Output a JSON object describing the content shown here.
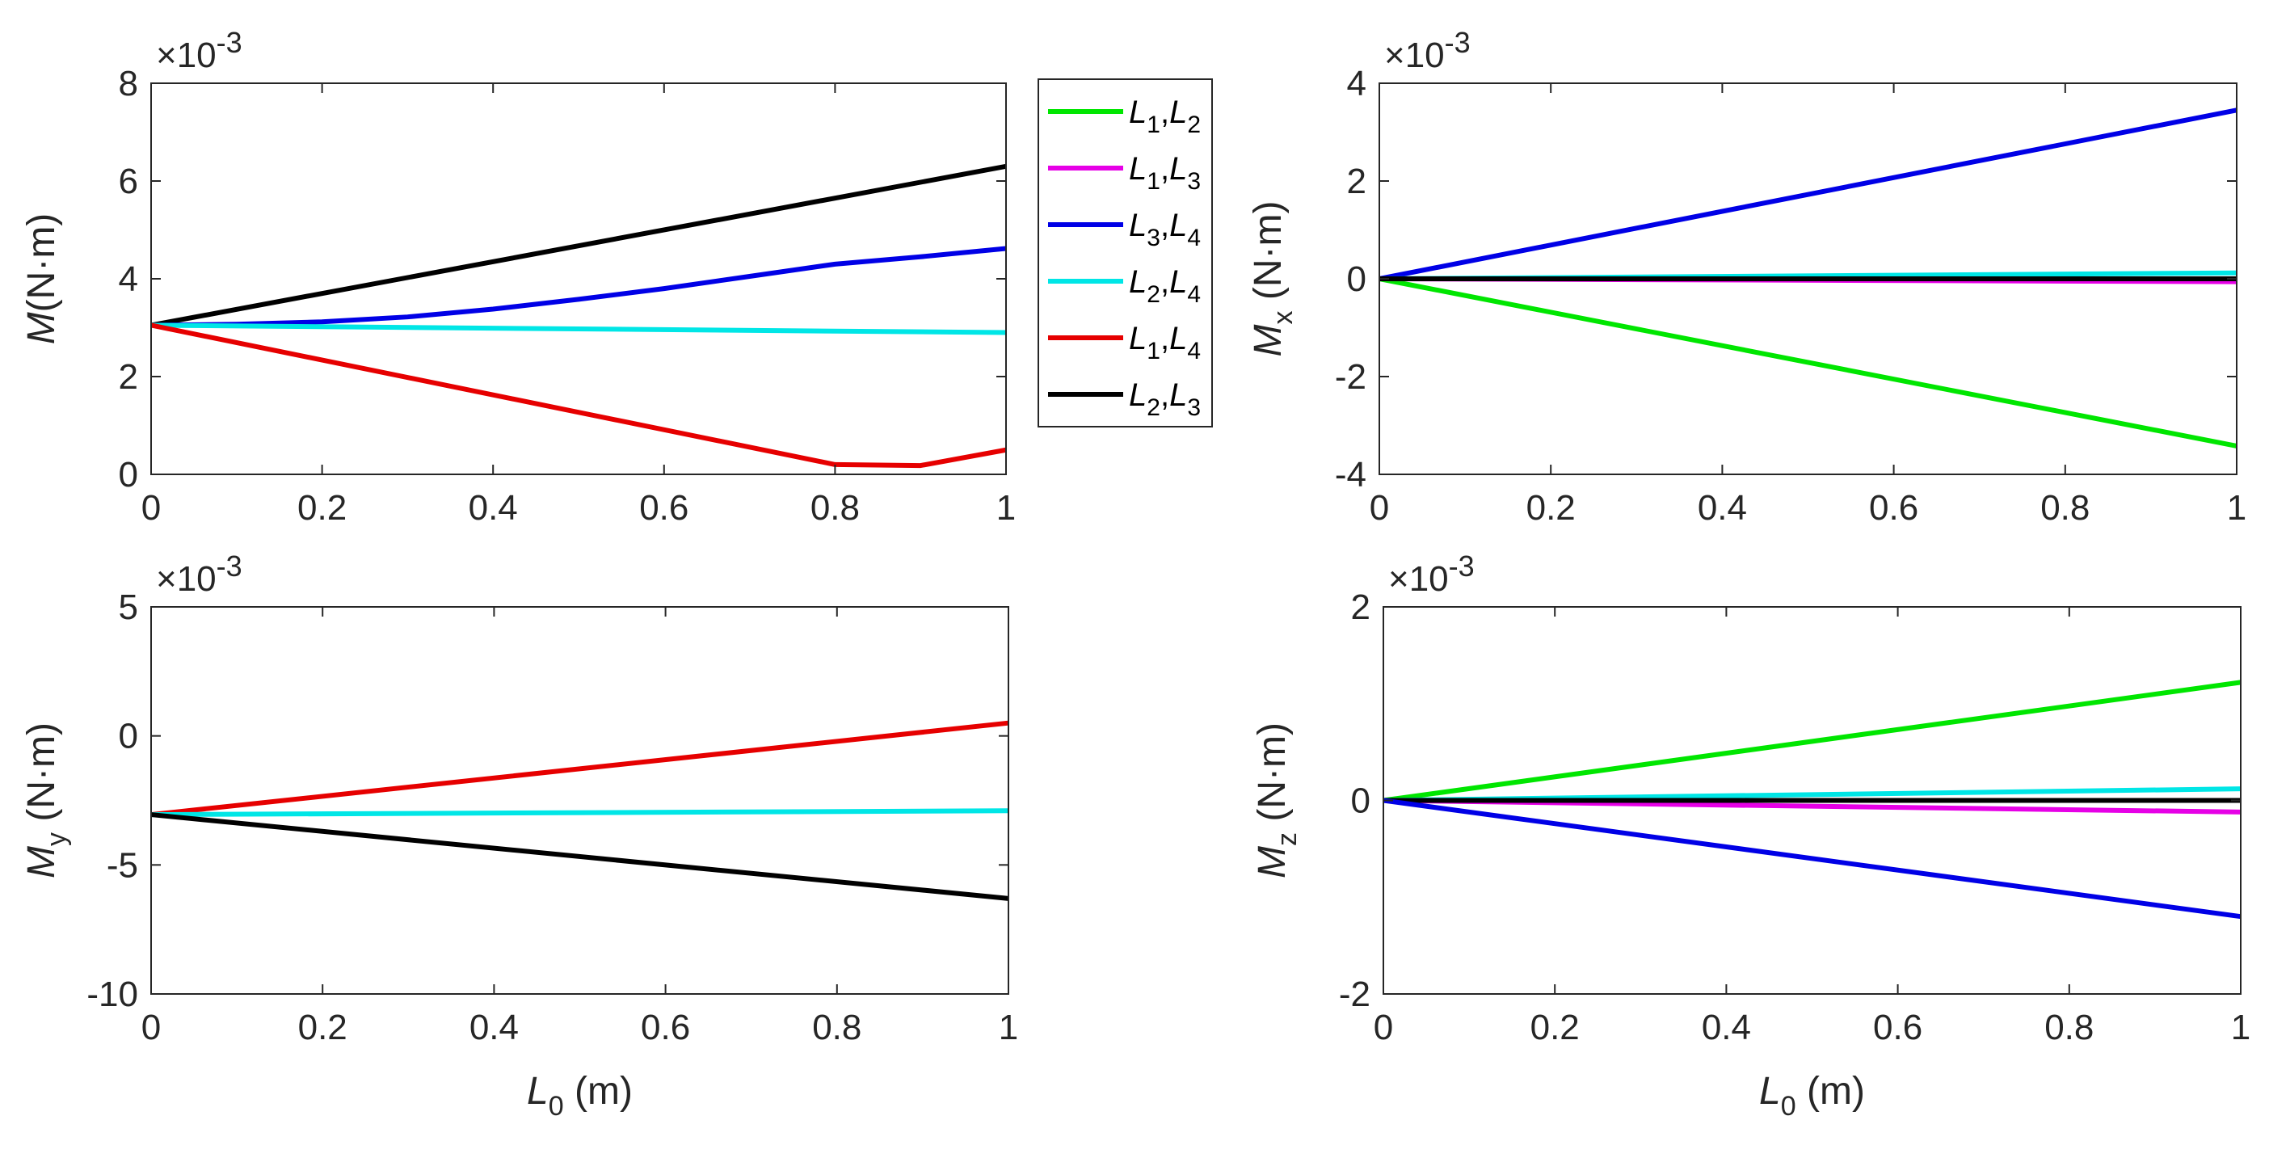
{
  "colors": {
    "L1L2": "#00e600",
    "L1L3": "#e600e6",
    "L3L4": "#0000e6",
    "L2L4": "#00e6e6",
    "L1L4": "#e60000",
    "L2L3": "#000000"
  },
  "legend": {
    "items": [
      {
        "key": "L1L2",
        "a": "L",
        "as": "1",
        "b": "L",
        "bs": "2"
      },
      {
        "key": "L1L3",
        "a": "L",
        "as": "1",
        "b": "L",
        "bs": "3"
      },
      {
        "key": "L3L4",
        "a": "L",
        "as": "3",
        "b": "L",
        "bs": "4"
      },
      {
        "key": "L2L4",
        "a": "L",
        "as": "2",
        "b": "L",
        "bs": "4"
      },
      {
        "key": "L1L4",
        "a": "L",
        "as": "1",
        "b": "L",
        "bs": "4"
      },
      {
        "key": "L2L3",
        "a": "L",
        "as": "2",
        "b": "L",
        "bs": "3"
      }
    ]
  },
  "chart_data": [
    {
      "id": "M",
      "type": "line",
      "ylabel": "M(N·m)",
      "ylabel_main": "M",
      "ylabel_sub": "",
      "ylabel_unit": "(N·m)",
      "xlabel": "",
      "exponent": "×10",
      "exponent_power": "-3",
      "xlim": [
        0,
        1
      ],
      "ylim": [
        0,
        8
      ],
      "xticks": [
        "0",
        "0.2",
        "0.4",
        "0.6",
        "0.8",
        "1"
      ],
      "yticks": [
        "0",
        "2",
        "4",
        "6",
        "8"
      ],
      "series": [
        {
          "key": "L2L3",
          "x": [
            0,
            1
          ],
          "y": [
            3.05,
            6.3
          ]
        },
        {
          "key": "L3L4",
          "x": [
            0,
            0.1,
            0.2,
            0.3,
            0.4,
            0.5,
            0.6,
            0.7,
            0.8,
            0.9,
            1.0
          ],
          "y": [
            3.05,
            3.07,
            3.12,
            3.22,
            3.38,
            3.58,
            3.8,
            4.05,
            4.3,
            4.45,
            4.62
          ]
        },
        {
          "key": "L2L4",
          "x": [
            0,
            1
          ],
          "y": [
            3.05,
            2.9
          ]
        },
        {
          "key": "L1L4",
          "x": [
            0,
            0.8,
            0.9,
            1.0
          ],
          "y": [
            3.05,
            0.2,
            0.18,
            0.5
          ]
        }
      ]
    },
    {
      "id": "Mx",
      "type": "line",
      "ylabel": "Mx (N·m)",
      "ylabel_main": "M",
      "ylabel_sub": "x",
      "ylabel_unit": " (N·m)",
      "xlabel": "",
      "exponent": "×10",
      "exponent_power": "-3",
      "xlim": [
        0,
        1
      ],
      "ylim": [
        -4,
        4
      ],
      "xticks": [
        "0",
        "0.2",
        "0.4",
        "0.6",
        "0.8",
        "1"
      ],
      "yticks": [
        "-4",
        "-2",
        "0",
        "2",
        "4"
      ],
      "series": [
        {
          "key": "L3L4",
          "x": [
            0,
            1
          ],
          "y": [
            0,
            3.45
          ]
        },
        {
          "key": "L1L2",
          "x": [
            0,
            1
          ],
          "y": [
            0,
            -3.42
          ]
        },
        {
          "key": "L2L4",
          "x": [
            0,
            1
          ],
          "y": [
            0,
            0.12
          ]
        },
        {
          "key": "L1L3",
          "x": [
            0,
            1
          ],
          "y": [
            0,
            -0.06
          ]
        },
        {
          "key": "L2L3",
          "x": [
            0,
            1
          ],
          "y": [
            0,
            0
          ]
        }
      ]
    },
    {
      "id": "My",
      "type": "line",
      "ylabel": "My (N·m)",
      "ylabel_main": "M",
      "ylabel_sub": "y",
      "ylabel_unit": " (N·m)",
      "xlabel": "L0 (m)",
      "xlabel_main": "L",
      "xlabel_sub": "0",
      "xlabel_unit": " (m)",
      "exponent": "×10",
      "exponent_power": "-3",
      "xlim": [
        0,
        1
      ],
      "ylim": [
        -10,
        5
      ],
      "xticks": [
        "0",
        "0.2",
        "0.4",
        "0.6",
        "0.8",
        "1"
      ],
      "yticks": [
        "-10",
        "-5",
        "0",
        "5"
      ],
      "series": [
        {
          "key": "L1L4",
          "x": [
            0,
            1
          ],
          "y": [
            -3.05,
            0.5
          ]
        },
        {
          "key": "L2L4",
          "x": [
            0,
            1
          ],
          "y": [
            -3.05,
            -2.9
          ]
        },
        {
          "key": "L2L3",
          "x": [
            0,
            1
          ],
          "y": [
            -3.05,
            -6.3
          ]
        }
      ]
    },
    {
      "id": "Mz",
      "type": "line",
      "ylabel": "Mz (N·m)",
      "ylabel_main": "M",
      "ylabel_sub": "z",
      "ylabel_unit": " (N·m)",
      "xlabel": "L0 (m)",
      "xlabel_main": "L",
      "xlabel_sub": "0",
      "xlabel_unit": " (m)",
      "exponent": "×10",
      "exponent_power": "-3",
      "xlim": [
        0,
        1
      ],
      "ylim": [
        -2,
        2
      ],
      "xticks": [
        "0",
        "0.2",
        "0.4",
        "0.6",
        "0.8",
        "1"
      ],
      "yticks": [
        "-2",
        "0",
        "2"
      ],
      "series": [
        {
          "key": "L1L2",
          "x": [
            0,
            1
          ],
          "y": [
            0,
            1.22
          ]
        },
        {
          "key": "L2L4",
          "x": [
            0,
            1
          ],
          "y": [
            0,
            0.12
          ]
        },
        {
          "key": "L1L3",
          "x": [
            0,
            1
          ],
          "y": [
            0,
            -0.12
          ]
        },
        {
          "key": "L2L3",
          "x": [
            0,
            1
          ],
          "y": [
            0,
            0
          ]
        },
        {
          "key": "L3L4",
          "x": [
            0,
            1
          ],
          "y": [
            0,
            -1.2
          ]
        }
      ]
    }
  ]
}
